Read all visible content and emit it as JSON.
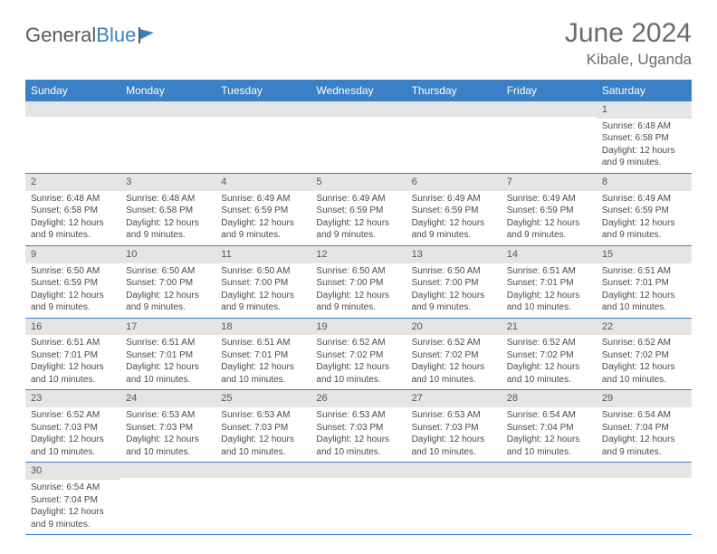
{
  "logo": {
    "text1": "General",
    "text2": "Blue"
  },
  "title": "June 2024",
  "location": "Kibale, Uganda",
  "colors": {
    "header_bg": "#3b7fc4",
    "header_text": "#ffffff",
    "daynum_bg": "#e5e5e5",
    "row_border": "#3b7fc4",
    "body_text": "#4a4a4a",
    "title_text": "#6b6b6b"
  },
  "columns": [
    "Sunday",
    "Monday",
    "Tuesday",
    "Wednesday",
    "Thursday",
    "Friday",
    "Saturday"
  ],
  "weeks": [
    [
      {
        "n": "",
        "sr": "",
        "ss": "",
        "dl": ""
      },
      {
        "n": "",
        "sr": "",
        "ss": "",
        "dl": ""
      },
      {
        "n": "",
        "sr": "",
        "ss": "",
        "dl": ""
      },
      {
        "n": "",
        "sr": "",
        "ss": "",
        "dl": ""
      },
      {
        "n": "",
        "sr": "",
        "ss": "",
        "dl": ""
      },
      {
        "n": "",
        "sr": "",
        "ss": "",
        "dl": ""
      },
      {
        "n": "1",
        "sr": "Sunrise: 6:48 AM",
        "ss": "Sunset: 6:58 PM",
        "dl": "Daylight: 12 hours and 9 minutes."
      }
    ],
    [
      {
        "n": "2",
        "sr": "Sunrise: 6:48 AM",
        "ss": "Sunset: 6:58 PM",
        "dl": "Daylight: 12 hours and 9 minutes."
      },
      {
        "n": "3",
        "sr": "Sunrise: 6:48 AM",
        "ss": "Sunset: 6:58 PM",
        "dl": "Daylight: 12 hours and 9 minutes."
      },
      {
        "n": "4",
        "sr": "Sunrise: 6:49 AM",
        "ss": "Sunset: 6:59 PM",
        "dl": "Daylight: 12 hours and 9 minutes."
      },
      {
        "n": "5",
        "sr": "Sunrise: 6:49 AM",
        "ss": "Sunset: 6:59 PM",
        "dl": "Daylight: 12 hours and 9 minutes."
      },
      {
        "n": "6",
        "sr": "Sunrise: 6:49 AM",
        "ss": "Sunset: 6:59 PM",
        "dl": "Daylight: 12 hours and 9 minutes."
      },
      {
        "n": "7",
        "sr": "Sunrise: 6:49 AM",
        "ss": "Sunset: 6:59 PM",
        "dl": "Daylight: 12 hours and 9 minutes."
      },
      {
        "n": "8",
        "sr": "Sunrise: 6:49 AM",
        "ss": "Sunset: 6:59 PM",
        "dl": "Daylight: 12 hours and 9 minutes."
      }
    ],
    [
      {
        "n": "9",
        "sr": "Sunrise: 6:50 AM",
        "ss": "Sunset: 6:59 PM",
        "dl": "Daylight: 12 hours and 9 minutes."
      },
      {
        "n": "10",
        "sr": "Sunrise: 6:50 AM",
        "ss": "Sunset: 7:00 PM",
        "dl": "Daylight: 12 hours and 9 minutes."
      },
      {
        "n": "11",
        "sr": "Sunrise: 6:50 AM",
        "ss": "Sunset: 7:00 PM",
        "dl": "Daylight: 12 hours and 9 minutes."
      },
      {
        "n": "12",
        "sr": "Sunrise: 6:50 AM",
        "ss": "Sunset: 7:00 PM",
        "dl": "Daylight: 12 hours and 9 minutes."
      },
      {
        "n": "13",
        "sr": "Sunrise: 6:50 AM",
        "ss": "Sunset: 7:00 PM",
        "dl": "Daylight: 12 hours and 9 minutes."
      },
      {
        "n": "14",
        "sr": "Sunrise: 6:51 AM",
        "ss": "Sunset: 7:01 PM",
        "dl": "Daylight: 12 hours and 10 minutes."
      },
      {
        "n": "15",
        "sr": "Sunrise: 6:51 AM",
        "ss": "Sunset: 7:01 PM",
        "dl": "Daylight: 12 hours and 10 minutes."
      }
    ],
    [
      {
        "n": "16",
        "sr": "Sunrise: 6:51 AM",
        "ss": "Sunset: 7:01 PM",
        "dl": "Daylight: 12 hours and 10 minutes."
      },
      {
        "n": "17",
        "sr": "Sunrise: 6:51 AM",
        "ss": "Sunset: 7:01 PM",
        "dl": "Daylight: 12 hours and 10 minutes."
      },
      {
        "n": "18",
        "sr": "Sunrise: 6:51 AM",
        "ss": "Sunset: 7:01 PM",
        "dl": "Daylight: 12 hours and 10 minutes."
      },
      {
        "n": "19",
        "sr": "Sunrise: 6:52 AM",
        "ss": "Sunset: 7:02 PM",
        "dl": "Daylight: 12 hours and 10 minutes."
      },
      {
        "n": "20",
        "sr": "Sunrise: 6:52 AM",
        "ss": "Sunset: 7:02 PM",
        "dl": "Daylight: 12 hours and 10 minutes."
      },
      {
        "n": "21",
        "sr": "Sunrise: 6:52 AM",
        "ss": "Sunset: 7:02 PM",
        "dl": "Daylight: 12 hours and 10 minutes."
      },
      {
        "n": "22",
        "sr": "Sunrise: 6:52 AM",
        "ss": "Sunset: 7:02 PM",
        "dl": "Daylight: 12 hours and 10 minutes."
      }
    ],
    [
      {
        "n": "23",
        "sr": "Sunrise: 6:52 AM",
        "ss": "Sunset: 7:03 PM",
        "dl": "Daylight: 12 hours and 10 minutes."
      },
      {
        "n": "24",
        "sr": "Sunrise: 6:53 AM",
        "ss": "Sunset: 7:03 PM",
        "dl": "Daylight: 12 hours and 10 minutes."
      },
      {
        "n": "25",
        "sr": "Sunrise: 6:53 AM",
        "ss": "Sunset: 7:03 PM",
        "dl": "Daylight: 12 hours and 10 minutes."
      },
      {
        "n": "26",
        "sr": "Sunrise: 6:53 AM",
        "ss": "Sunset: 7:03 PM",
        "dl": "Daylight: 12 hours and 10 minutes."
      },
      {
        "n": "27",
        "sr": "Sunrise: 6:53 AM",
        "ss": "Sunset: 7:03 PM",
        "dl": "Daylight: 12 hours and 10 minutes."
      },
      {
        "n": "28",
        "sr": "Sunrise: 6:54 AM",
        "ss": "Sunset: 7:04 PM",
        "dl": "Daylight: 12 hours and 10 minutes."
      },
      {
        "n": "29",
        "sr": "Sunrise: 6:54 AM",
        "ss": "Sunset: 7:04 PM",
        "dl": "Daylight: 12 hours and 9 minutes."
      }
    ],
    [
      {
        "n": "30",
        "sr": "Sunrise: 6:54 AM",
        "ss": "Sunset: 7:04 PM",
        "dl": "Daylight: 12 hours and 9 minutes."
      },
      {
        "n": "",
        "sr": "",
        "ss": "",
        "dl": ""
      },
      {
        "n": "",
        "sr": "",
        "ss": "",
        "dl": ""
      },
      {
        "n": "",
        "sr": "",
        "ss": "",
        "dl": ""
      },
      {
        "n": "",
        "sr": "",
        "ss": "",
        "dl": ""
      },
      {
        "n": "",
        "sr": "",
        "ss": "",
        "dl": ""
      },
      {
        "n": "",
        "sr": "",
        "ss": "",
        "dl": ""
      }
    ]
  ]
}
